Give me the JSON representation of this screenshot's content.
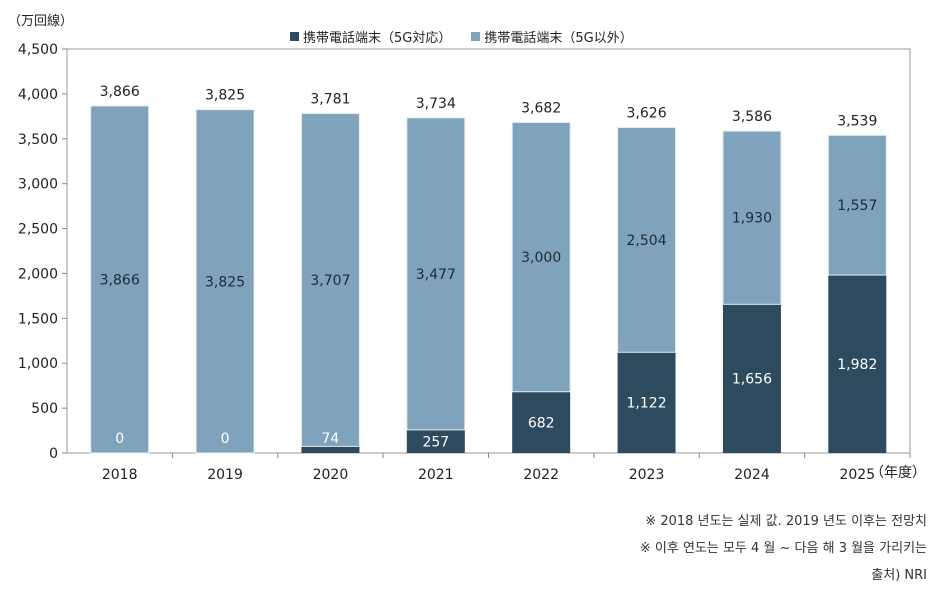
{
  "chart_data": {
    "type": "bar",
    "stacked": true,
    "categories": [
      "2018",
      "2019",
      "2020",
      "2021",
      "2022",
      "2023",
      "2024",
      "2025"
    ],
    "series": [
      {
        "name": "携帯電話端末（5G対応）",
        "values": [
          0,
          0,
          74,
          257,
          682,
          1122,
          1656,
          1982
        ],
        "labels": [
          "0",
          "0",
          "74",
          "257",
          "682",
          "1,122",
          "1,656",
          "1,982"
        ],
        "color": "#2e4a5f"
      },
      {
        "name": "携帯電話端末（5G以外）",
        "values": [
          3866,
          3825,
          3707,
          3477,
          3000,
          2504,
          1930,
          1557
        ],
        "labels": [
          "3,866",
          "3,825",
          "3,707",
          "3,477",
          "3,000",
          "2,504",
          "1,930",
          "1,557"
        ],
        "color": "#7fa3bd"
      }
    ],
    "totals": [
      3866,
      3825,
      3781,
      3734,
      3682,
      3626,
      3586,
      3539
    ],
    "total_labels": [
      "3,866",
      "3,825",
      "3,781",
      "3,734",
      "3,682",
      "3,626",
      "3,586",
      "3,539"
    ],
    "ylabel": "（万回線）",
    "xunit": "（年度）",
    "ylim": [
      0,
      4500
    ],
    "yticks": [
      0,
      500,
      1000,
      1500,
      2000,
      2500,
      3000,
      3500,
      4000,
      4500
    ],
    "ytick_labels": [
      "0",
      "500",
      "1,000",
      "1,500",
      "2,000",
      "2,500",
      "3,000",
      "3,500",
      "4,000",
      "4,500"
    ],
    "grid": false,
    "legend_position": "top"
  },
  "notes": [
    "※ 2018 년도는 실제 값. 2019 년도 이후는 전망치",
    "※ 이후 연도는 모두 4 월 ~ 다음 해 3 월을 가리키는",
    "출처) NRI"
  ]
}
